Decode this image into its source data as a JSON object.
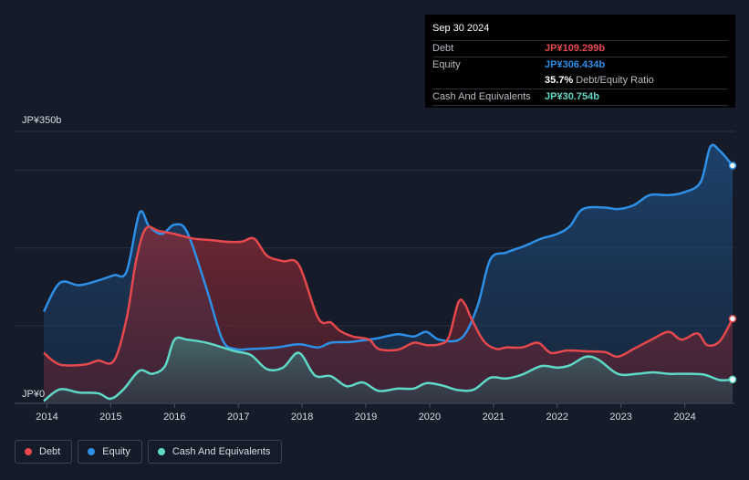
{
  "chart_data": {
    "type": "area",
    "currency_unit": "JP¥",
    "y_labels": {
      "top": "JP¥350b",
      "bottom": "JP¥0"
    },
    "ylim": [
      0,
      350
    ],
    "xlim": [
      2013.95,
      2024.75
    ],
    "x_ticks": [
      "2014",
      "2015",
      "2016",
      "2017",
      "2018",
      "2019",
      "2020",
      "2021",
      "2022",
      "2023",
      "2024"
    ],
    "grid": true,
    "legend_placement": "bottom-left",
    "series": [
      {
        "name": "Debt",
        "color": "#e5484d",
        "points": [
          [
            2013.95,
            65
          ],
          [
            2014.2,
            50
          ],
          [
            2014.6,
            50
          ],
          [
            2014.8,
            55
          ],
          [
            2015.05,
            55
          ],
          [
            2015.25,
            110
          ],
          [
            2015.4,
            185
          ],
          [
            2015.55,
            225
          ],
          [
            2015.75,
            222
          ],
          [
            2016.0,
            218
          ],
          [
            2016.3,
            212
          ],
          [
            2016.6,
            210
          ],
          [
            2016.8,
            208
          ],
          [
            2017.05,
            208
          ],
          [
            2017.25,
            212
          ],
          [
            2017.45,
            190
          ],
          [
            2017.7,
            183
          ],
          [
            2017.95,
            178
          ],
          [
            2018.25,
            110
          ],
          [
            2018.45,
            104
          ],
          [
            2018.6,
            93
          ],
          [
            2018.8,
            86
          ],
          [
            2019.05,
            82
          ],
          [
            2019.2,
            70
          ],
          [
            2019.5,
            69
          ],
          [
            2019.75,
            78
          ],
          [
            2019.95,
            75
          ],
          [
            2020.15,
            76
          ],
          [
            2020.3,
            85
          ],
          [
            2020.45,
            130
          ],
          [
            2020.55,
            128
          ],
          [
            2020.65,
            110
          ],
          [
            2020.85,
            80
          ],
          [
            2021.05,
            70
          ],
          [
            2021.2,
            72
          ],
          [
            2021.45,
            72
          ],
          [
            2021.7,
            78
          ],
          [
            2021.9,
            65
          ],
          [
            2022.15,
            68
          ],
          [
            2022.45,
            67
          ],
          [
            2022.75,
            66
          ],
          [
            2022.95,
            60
          ],
          [
            2023.2,
            70
          ],
          [
            2023.5,
            83
          ],
          [
            2023.75,
            92
          ],
          [
            2023.95,
            82
          ],
          [
            2024.2,
            90
          ],
          [
            2024.35,
            75
          ],
          [
            2024.55,
            80
          ],
          [
            2024.75,
            109
          ]
        ]
      },
      {
        "name": "Equity",
        "color": "#2e8fe6",
        "points": [
          [
            2013.95,
            118
          ],
          [
            2014.2,
            155
          ],
          [
            2014.5,
            152
          ],
          [
            2014.8,
            158
          ],
          [
            2015.05,
            165
          ],
          [
            2015.25,
            170
          ],
          [
            2015.45,
            245
          ],
          [
            2015.6,
            228
          ],
          [
            2015.8,
            218
          ],
          [
            2016.0,
            230
          ],
          [
            2016.2,
            220
          ],
          [
            2016.5,
            148
          ],
          [
            2016.75,
            82
          ],
          [
            2016.95,
            70
          ],
          [
            2017.2,
            70
          ],
          [
            2017.6,
            72
          ],
          [
            2017.95,
            76
          ],
          [
            2018.25,
            72
          ],
          [
            2018.45,
            78
          ],
          [
            2018.75,
            79
          ],
          [
            2018.95,
            81
          ],
          [
            2019.2,
            84
          ],
          [
            2019.5,
            89
          ],
          [
            2019.75,
            86
          ],
          [
            2019.95,
            92
          ],
          [
            2020.15,
            82
          ],
          [
            2020.5,
            84
          ],
          [
            2020.75,
            125
          ],
          [
            2020.95,
            185
          ],
          [
            2021.2,
            194
          ],
          [
            2021.5,
            203
          ],
          [
            2021.75,
            212
          ],
          [
            2022.0,
            218
          ],
          [
            2022.2,
            228
          ],
          [
            2022.4,
            250
          ],
          [
            2022.75,
            252
          ],
          [
            2022.95,
            250
          ],
          [
            2023.2,
            255
          ],
          [
            2023.45,
            268
          ],
          [
            2023.75,
            268
          ],
          [
            2024.0,
            272
          ],
          [
            2024.25,
            285
          ],
          [
            2024.4,
            330
          ],
          [
            2024.55,
            325
          ],
          [
            2024.75,
            306
          ]
        ]
      },
      {
        "name": "Cash And Equivalents",
        "color": "#5fd8c6",
        "points": [
          [
            2013.95,
            3
          ],
          [
            2014.2,
            18
          ],
          [
            2014.5,
            14
          ],
          [
            2014.8,
            13
          ],
          [
            2015.0,
            6
          ],
          [
            2015.2,
            18
          ],
          [
            2015.45,
            42
          ],
          [
            2015.65,
            38
          ],
          [
            2015.85,
            48
          ],
          [
            2016.0,
            82
          ],
          [
            2016.2,
            82
          ],
          [
            2016.5,
            78
          ],
          [
            2016.75,
            72
          ],
          [
            2016.95,
            67
          ],
          [
            2017.2,
            62
          ],
          [
            2017.45,
            44
          ],
          [
            2017.7,
            46
          ],
          [
            2017.95,
            65
          ],
          [
            2018.2,
            36
          ],
          [
            2018.45,
            35
          ],
          [
            2018.7,
            22
          ],
          [
            2018.95,
            27
          ],
          [
            2019.2,
            16
          ],
          [
            2019.5,
            19
          ],
          [
            2019.75,
            19
          ],
          [
            2019.95,
            26
          ],
          [
            2020.2,
            23
          ],
          [
            2020.45,
            17
          ],
          [
            2020.7,
            18
          ],
          [
            2020.95,
            33
          ],
          [
            2021.2,
            32
          ],
          [
            2021.45,
            37
          ],
          [
            2021.75,
            48
          ],
          [
            2022.0,
            46
          ],
          [
            2022.2,
            49
          ],
          [
            2022.45,
            60
          ],
          [
            2022.65,
            56
          ],
          [
            2022.95,
            38
          ],
          [
            2023.25,
            38
          ],
          [
            2023.5,
            40
          ],
          [
            2023.75,
            38
          ],
          [
            2024.0,
            38
          ],
          [
            2024.3,
            37
          ],
          [
            2024.55,
            30
          ],
          [
            2024.75,
            30.754
          ]
        ]
      }
    ]
  },
  "tooltip": {
    "date": "Sep 30 2024",
    "debt_label": "Debt",
    "debt_value": "JP¥109.299b",
    "equity_label": "Equity",
    "equity_value": "JP¥306.434b",
    "ratio_value": "35.7%",
    "ratio_label": "Debt/Equity Ratio",
    "cash_label": "Cash And Equivalents",
    "cash_value": "JP¥30.754b"
  },
  "legend": {
    "debt_label": "Debt",
    "equity_label": "Equity",
    "cash_label": "Cash And Equivalents"
  },
  "colors": {
    "debt": "#e5484d",
    "equity": "#2e8fe6",
    "cash": "#5fd8c6",
    "background": "#151b28"
  }
}
